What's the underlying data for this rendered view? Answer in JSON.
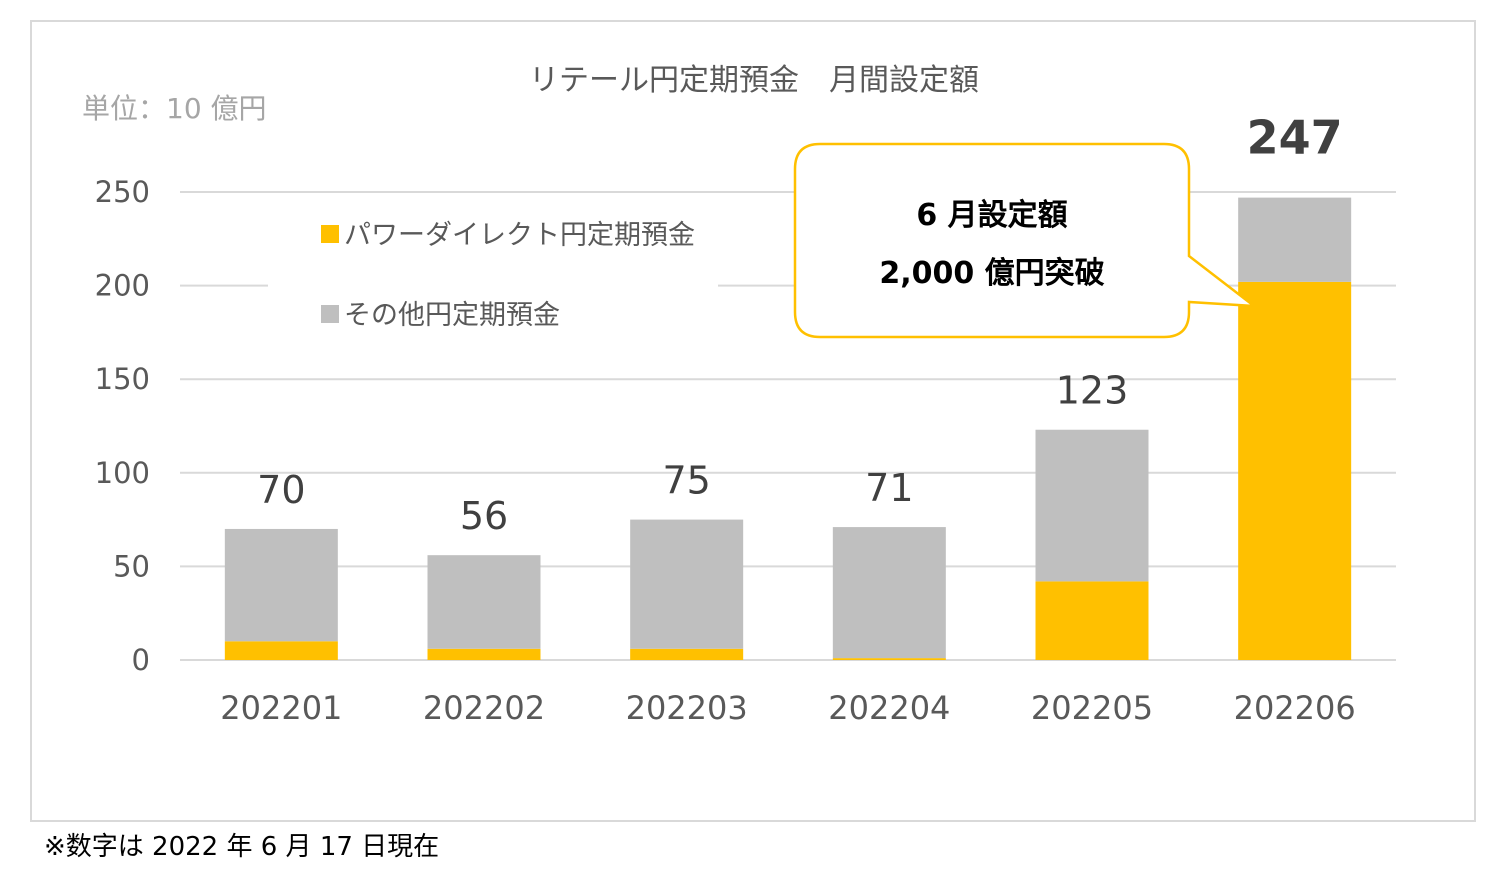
{
  "chart_data": {
    "type": "bar",
    "stacked": true,
    "title": "リテール円定期預金　月間設定額",
    "unit_label": "単位：10 億円",
    "categories": [
      "202201",
      "202202",
      "202203",
      "202204",
      "202205",
      "202206"
    ],
    "series": [
      {
        "name": "パワーダイレクト円定期預金",
        "color": "#ffc000",
        "values": [
          10,
          6,
          6,
          1,
          42,
          202
        ]
      },
      {
        "name": "その他円定期預金",
        "color": "#bfbfbf",
        "values": [
          60,
          50,
          69,
          70,
          81,
          45
        ]
      }
    ],
    "totals": [
      "70",
      "56",
      "75",
      "71",
      "123",
      "247"
    ],
    "ylim": [
      0,
      250
    ],
    "yticks": [
      "0",
      "50",
      "100",
      "150",
      "200",
      "250"
    ],
    "grid": true,
    "legend_position": "top-left",
    "annotation": {
      "line1": "6 月設定額",
      "line2": "2,000 億円突破",
      "border_color": "#ffc000"
    }
  },
  "footnote": "※数字は 2022 年 6 月 17 日現在"
}
